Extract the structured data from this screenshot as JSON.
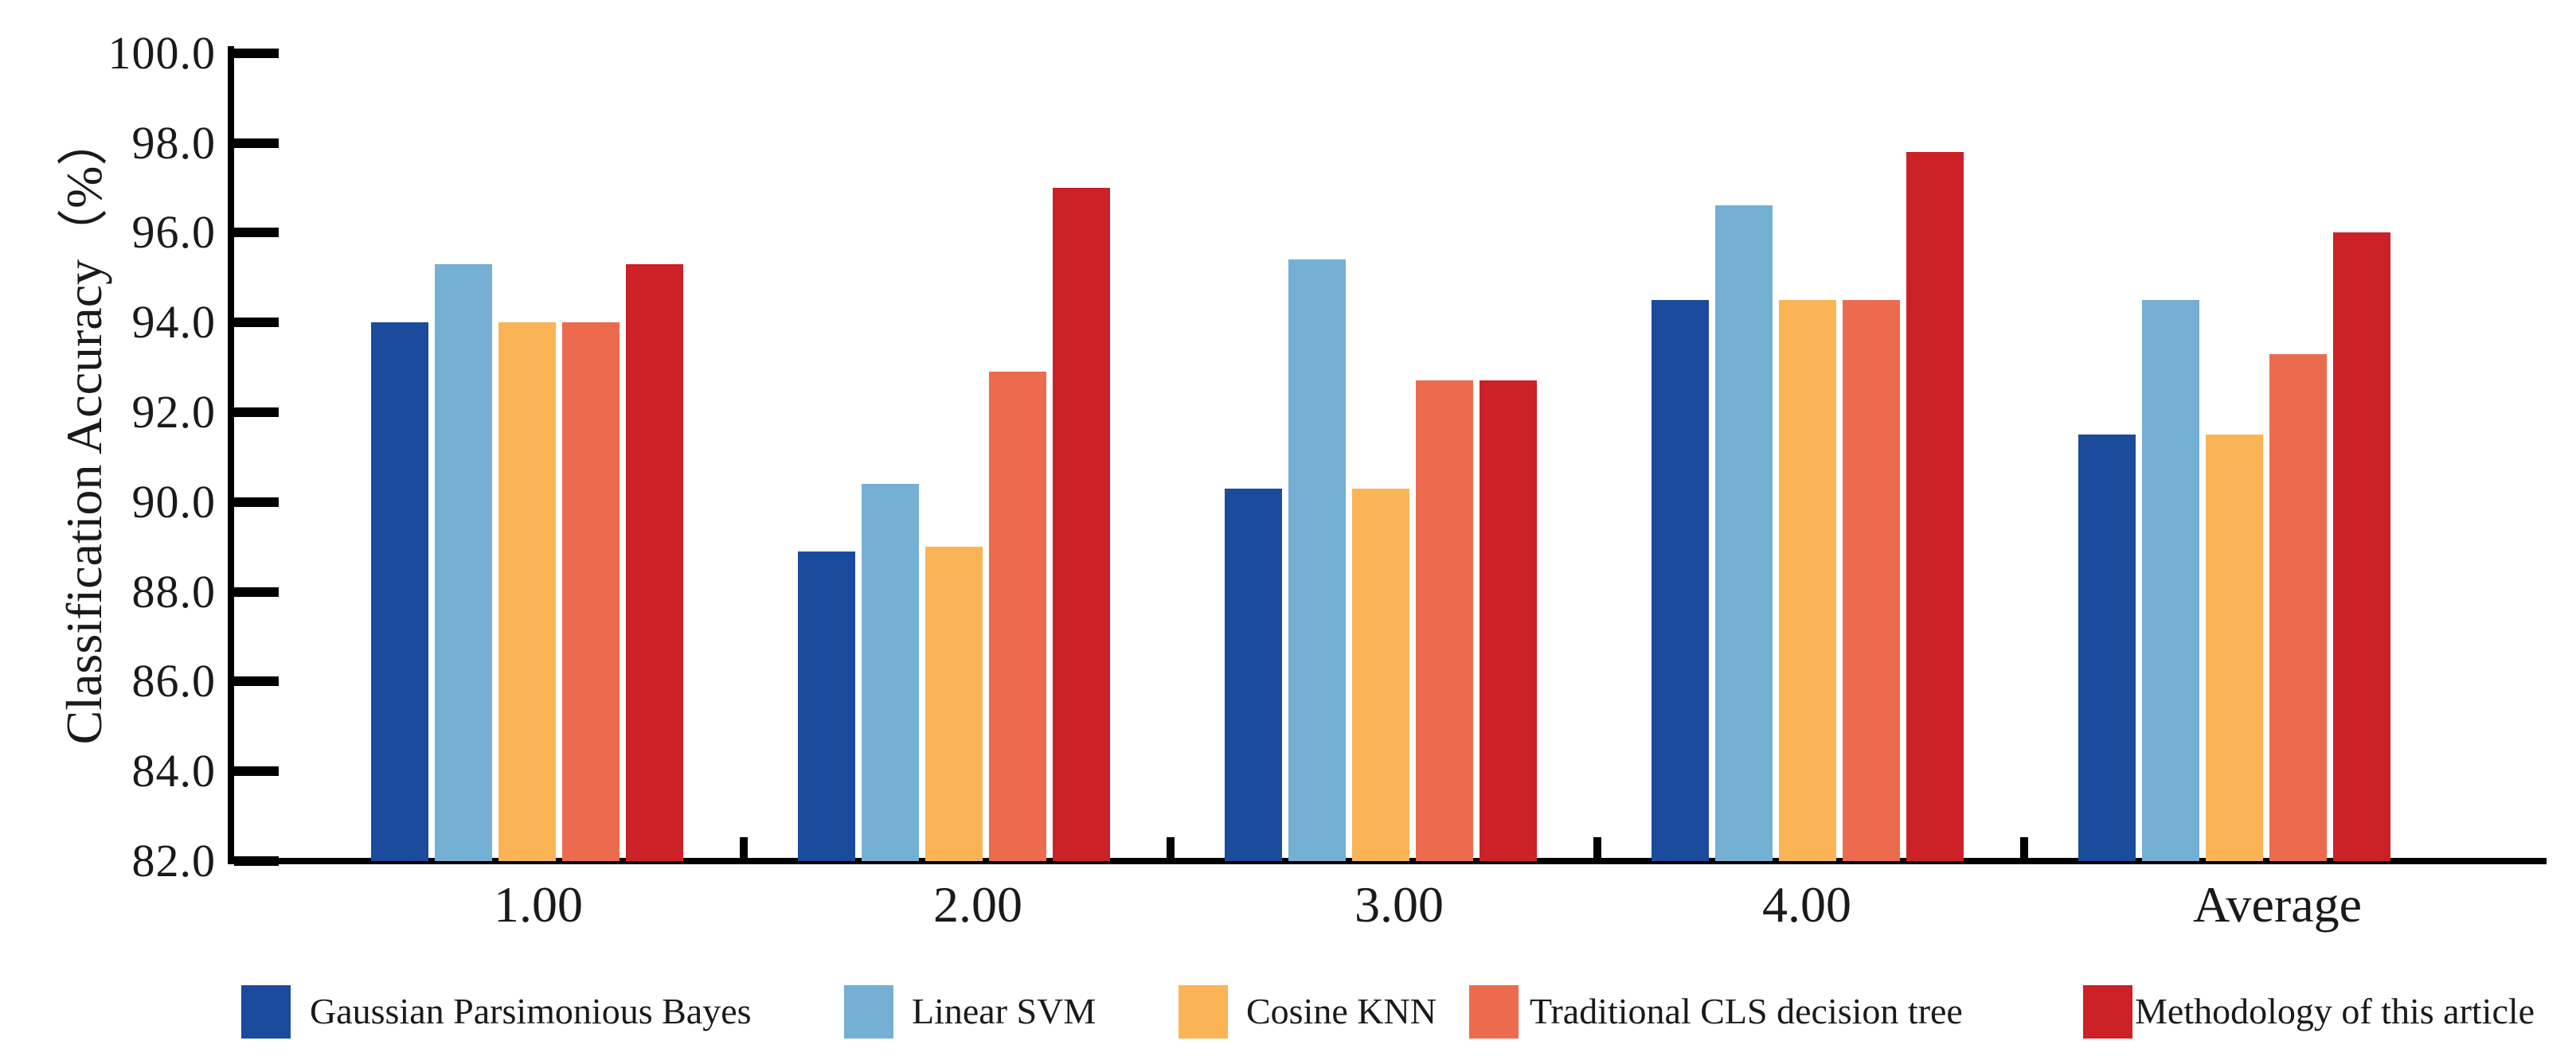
{
  "chart_data": {
    "type": "bar",
    "title": "",
    "ylabel": "Classification Accuracy（%）",
    "xlabel": "",
    "categories": [
      "1.00",
      "2.00",
      "3.00",
      "4.00",
      "Average"
    ],
    "series": [
      {
        "name": "Gaussian Parsimonious Bayes",
        "color": "#1A4B9D",
        "values": [
          94.0,
          88.9,
          90.3,
          94.5,
          91.5
        ]
      },
      {
        "name": "Linear SVM",
        "color": "#74AFD4",
        "values": [
          95.3,
          90.4,
          95.4,
          96.6,
          94.5
        ]
      },
      {
        "name": "Cosine KNN",
        "color": "#FAB456",
        "values": [
          94.0,
          89.0,
          90.3,
          94.5,
          91.5
        ]
      },
      {
        "name": "Traditional CLS decision tree",
        "color": "#EC6B4E",
        "values": [
          94.0,
          92.9,
          92.7,
          94.5,
          93.3
        ]
      },
      {
        "name": "Methodology of this article",
        "color": "#CC2127",
        "values": [
          95.3,
          97.0,
          92.7,
          97.8,
          96.0
        ]
      }
    ],
    "ylim": [
      82.0,
      100.0
    ],
    "y_tick_step": 2.0,
    "y_tick_labels": [
      "100.0",
      "98.0",
      "96.0",
      "94.0",
      "92.0",
      "90.0",
      "88.0",
      "86.0",
      "84.0",
      "82.0"
    ],
    "grid": false,
    "legend_position": "bottom",
    "axis_color": "#000000"
  }
}
